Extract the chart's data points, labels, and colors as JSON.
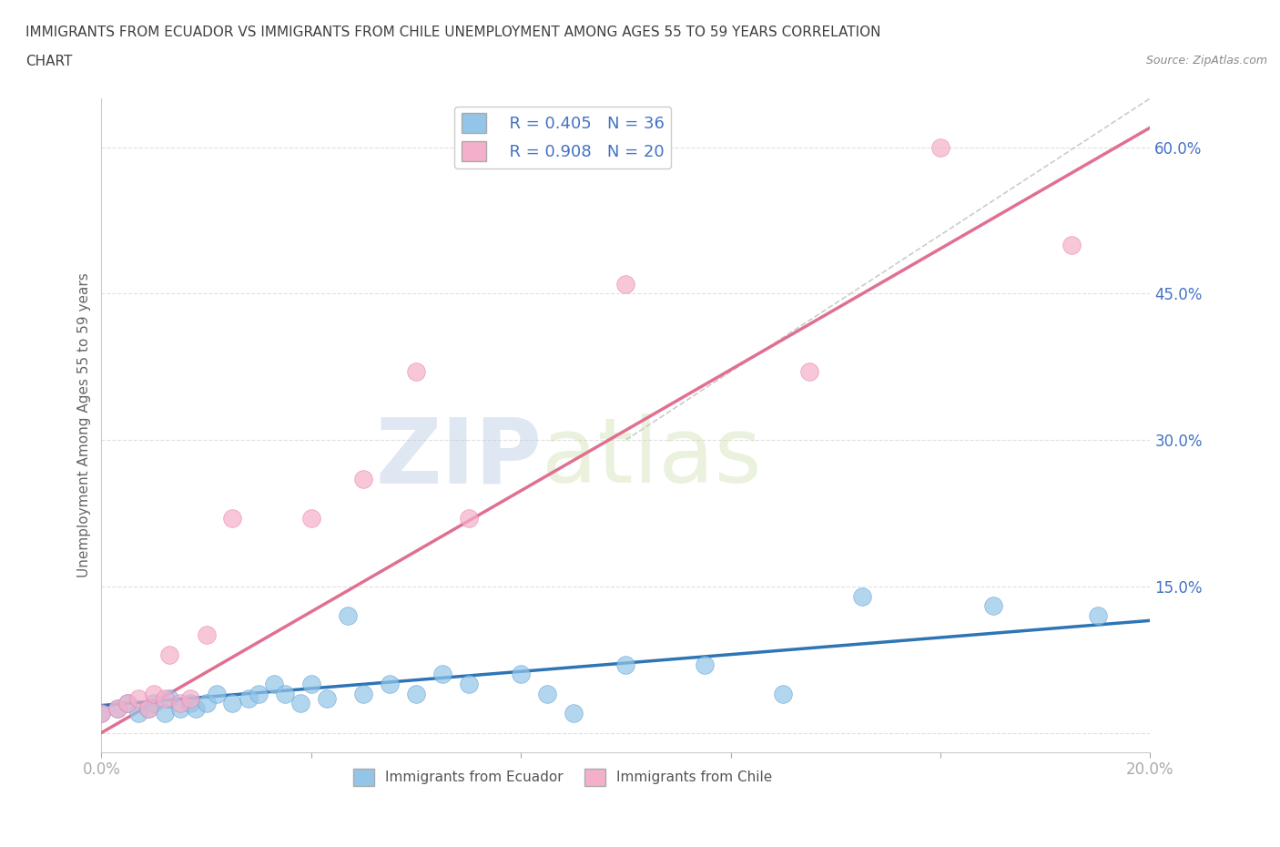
{
  "title_line1": "IMMIGRANTS FROM ECUADOR VS IMMIGRANTS FROM CHILE UNEMPLOYMENT AMONG AGES 55 TO 59 YEARS CORRELATION",
  "title_line2": "CHART",
  "source": "Source: ZipAtlas.com",
  "ylabel": "Unemployment Among Ages 55 to 59 years",
  "xlim": [
    0.0,
    0.2
  ],
  "ylim": [
    -0.02,
    0.65
  ],
  "xticks": [
    0.0,
    0.04,
    0.08,
    0.12,
    0.16,
    0.2
  ],
  "xticklabels": [
    "0.0%",
    "",
    "",
    "",
    "",
    "20.0%"
  ],
  "yticks": [
    0.0,
    0.15,
    0.3,
    0.45,
    0.6
  ],
  "yticklabels": [
    "",
    "15.0%",
    "30.0%",
    "45.0%",
    "60.0%"
  ],
  "ecuador_color": "#92C5E8",
  "ecuador_edge_color": "#5B9BD5",
  "chile_color": "#F4AFCA",
  "chile_edge_color": "#E87CA0",
  "ecuador_R": 0.405,
  "ecuador_N": 36,
  "chile_R": 0.908,
  "chile_N": 20,
  "watermark_zip": "ZIP",
  "watermark_atlas": "atlas",
  "background_color": "#ffffff",
  "grid_color": "#e0e0e0",
  "ecuador_scatter_x": [
    0.0,
    0.003,
    0.005,
    0.007,
    0.009,
    0.01,
    0.012,
    0.013,
    0.015,
    0.017,
    0.018,
    0.02,
    0.022,
    0.025,
    0.028,
    0.03,
    0.033,
    0.035,
    0.038,
    0.04,
    0.043,
    0.047,
    0.05,
    0.055,
    0.06,
    0.065,
    0.07,
    0.08,
    0.085,
    0.09,
    0.1,
    0.115,
    0.13,
    0.145,
    0.17,
    0.19
  ],
  "ecuador_scatter_y": [
    0.02,
    0.025,
    0.03,
    0.02,
    0.025,
    0.03,
    0.02,
    0.035,
    0.025,
    0.03,
    0.025,
    0.03,
    0.04,
    0.03,
    0.035,
    0.04,
    0.05,
    0.04,
    0.03,
    0.05,
    0.035,
    0.12,
    0.04,
    0.05,
    0.04,
    0.06,
    0.05,
    0.06,
    0.04,
    0.02,
    0.07,
    0.07,
    0.04,
    0.14,
    0.13,
    0.12
  ],
  "chile_scatter_x": [
    0.0,
    0.003,
    0.005,
    0.007,
    0.009,
    0.01,
    0.012,
    0.013,
    0.015,
    0.017,
    0.02,
    0.025,
    0.04,
    0.05,
    0.06,
    0.07,
    0.1,
    0.135,
    0.16,
    0.185
  ],
  "chile_scatter_y": [
    0.02,
    0.025,
    0.03,
    0.035,
    0.025,
    0.04,
    0.035,
    0.08,
    0.03,
    0.035,
    0.1,
    0.22,
    0.22,
    0.26,
    0.37,
    0.22,
    0.46,
    0.37,
    0.6,
    0.5
  ],
  "ecuador_trend_x": [
    0.0,
    0.2
  ],
  "ecuador_trend_y": [
    0.028,
    0.115
  ],
  "chile_trend_x": [
    0.0,
    0.2
  ],
  "chile_trend_y": [
    0.0,
    0.62
  ],
  "diag_line_x": [
    0.1,
    0.2
  ],
  "diag_line_y": [
    0.3,
    0.65
  ],
  "label_color": "#4472C4",
  "title_color": "#404040",
  "axis_label_color": "#666666"
}
